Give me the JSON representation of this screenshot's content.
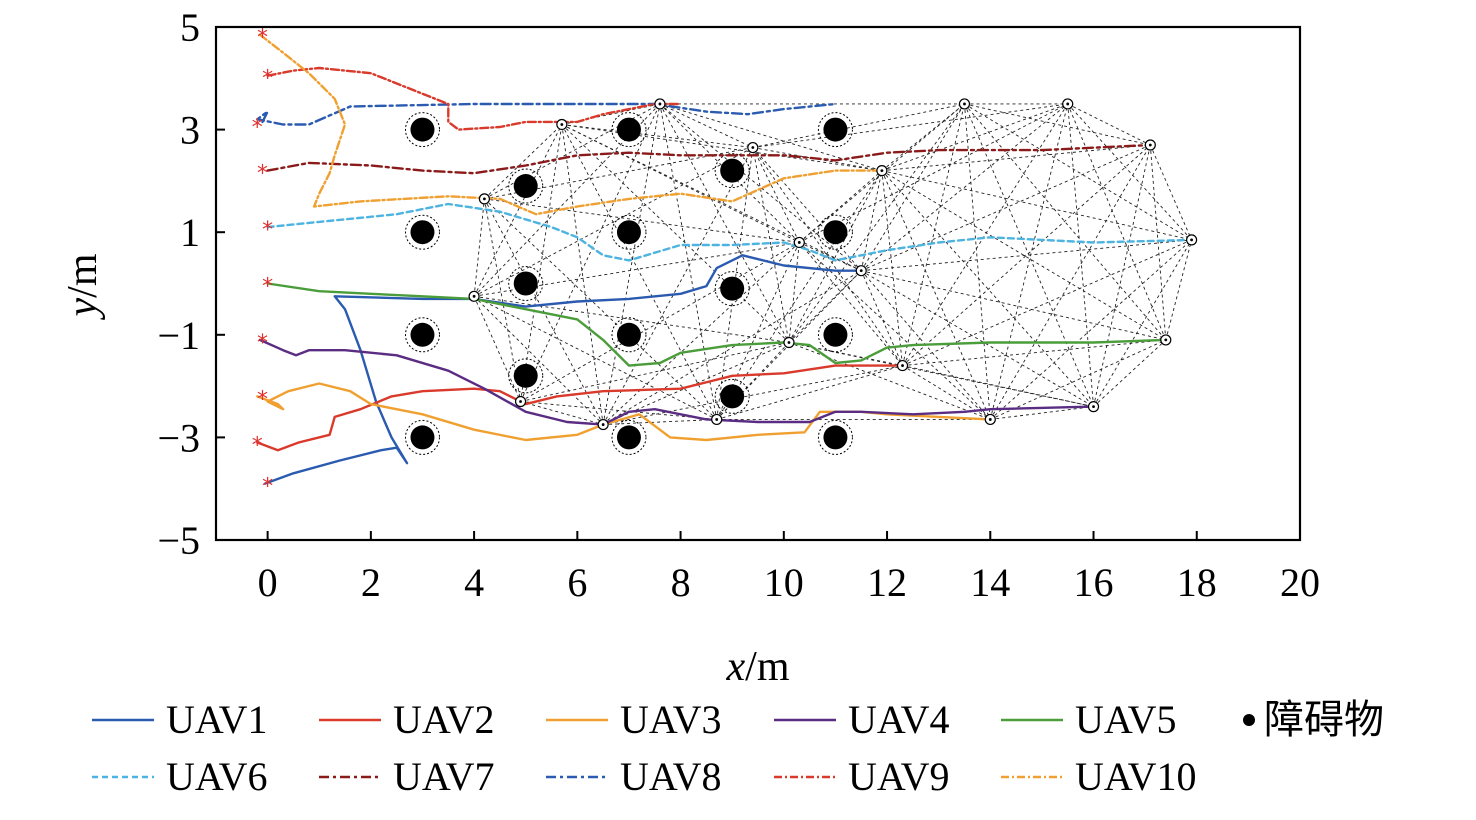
{
  "chart_data": {
    "type": "line",
    "xlabel": "x/m",
    "ylabel": "y/m",
    "xlim": [
      -1,
      20
    ],
    "ylim": [
      -5,
      5
    ],
    "xticks": [
      0,
      2,
      4,
      6,
      8,
      10,
      12,
      14,
      16,
      18,
      20
    ],
    "yticks": [
      -5,
      -3,
      -1,
      1,
      3,
      5
    ],
    "grid": false,
    "legend_position": "bottom",
    "obstacle_legend": "障碍物",
    "series": [
      {
        "name": "UAV1",
        "color": "#2b5bb0",
        "dash": "solid",
        "points": [
          [
            -0.05,
            -3.9
          ],
          [
            0.5,
            -3.7
          ],
          [
            1.4,
            -3.45
          ],
          [
            2.2,
            -3.25
          ],
          [
            2.5,
            -3.2
          ],
          [
            2.7,
            -3.5
          ],
          [
            2.4,
            -3.0
          ],
          [
            2.1,
            -2.3
          ],
          [
            1.8,
            -1.3
          ],
          [
            1.5,
            -0.5
          ],
          [
            1.3,
            -0.25
          ],
          [
            3.0,
            -0.3
          ],
          [
            4.0,
            -0.3
          ],
          [
            5.0,
            -0.45
          ],
          [
            6.0,
            -0.35
          ],
          [
            7.0,
            -0.3
          ],
          [
            8.0,
            -0.2
          ],
          [
            8.5,
            -0.05
          ],
          [
            8.7,
            0.3
          ],
          [
            9.2,
            0.55
          ],
          [
            10.0,
            0.35
          ],
          [
            11.0,
            0.25
          ],
          [
            11.5,
            0.25
          ]
        ]
      },
      {
        "name": "UAV2",
        "color": "#d93a2b",
        "dash": "solid",
        "points": [
          [
            -0.2,
            -3.1
          ],
          [
            0.2,
            -3.25
          ],
          [
            0.6,
            -3.1
          ],
          [
            1.2,
            -2.95
          ],
          [
            1.3,
            -2.6
          ],
          [
            1.8,
            -2.45
          ],
          [
            2.4,
            -2.2
          ],
          [
            3.0,
            -2.1
          ],
          [
            4.0,
            -2.05
          ],
          [
            4.5,
            -2.1
          ],
          [
            5.0,
            -2.35
          ],
          [
            5.6,
            -2.2
          ],
          [
            6.5,
            -2.1
          ],
          [
            8.0,
            -2.05
          ],
          [
            8.6,
            -1.9
          ],
          [
            9.0,
            -1.8
          ],
          [
            10.0,
            -1.75
          ],
          [
            11.0,
            -1.6
          ],
          [
            12.3,
            -1.6
          ]
        ]
      },
      {
        "name": "UAV3",
        "color": "#f0a030",
        "dash": "solid",
        "points": [
          [
            -0.2,
            -2.2
          ],
          [
            0.2,
            -2.35
          ],
          [
            0.3,
            -2.45
          ],
          [
            0.0,
            -2.3
          ],
          [
            0.4,
            -2.1
          ],
          [
            1.0,
            -1.95
          ],
          [
            1.6,
            -2.1
          ],
          [
            2.0,
            -2.35
          ],
          [
            3.0,
            -2.55
          ],
          [
            4.0,
            -2.85
          ],
          [
            5.0,
            -3.05
          ],
          [
            6.0,
            -2.95
          ],
          [
            6.5,
            -2.75
          ],
          [
            7.2,
            -2.55
          ],
          [
            7.8,
            -3.0
          ],
          [
            8.5,
            -3.05
          ],
          [
            9.5,
            -2.95
          ],
          [
            10.4,
            -2.9
          ],
          [
            10.7,
            -2.5
          ],
          [
            11.5,
            -2.5
          ],
          [
            12.0,
            -2.55
          ],
          [
            13.0,
            -2.6
          ],
          [
            14.0,
            -2.65
          ]
        ]
      },
      {
        "name": "UAV4",
        "color": "#5a2c82",
        "dash": "solid",
        "points": [
          [
            -0.15,
            -1.1
          ],
          [
            0.3,
            -1.3
          ],
          [
            0.55,
            -1.4
          ],
          [
            0.8,
            -1.3
          ],
          [
            1.5,
            -1.3
          ],
          [
            2.5,
            -1.4
          ],
          [
            3.5,
            -1.7
          ],
          [
            4.2,
            -2.05
          ],
          [
            5.0,
            -2.5
          ],
          [
            5.8,
            -2.7
          ],
          [
            6.5,
            -2.75
          ],
          [
            7.0,
            -2.5
          ],
          [
            7.5,
            -2.45
          ],
          [
            8.5,
            -2.65
          ],
          [
            9.5,
            -2.7
          ],
          [
            10.5,
            -2.7
          ],
          [
            11.0,
            -2.5
          ],
          [
            11.5,
            -2.5
          ],
          [
            12.5,
            -2.55
          ],
          [
            13.5,
            -2.5
          ],
          [
            14.0,
            -2.45
          ],
          [
            16.0,
            -2.4
          ]
        ]
      },
      {
        "name": "UAV5",
        "color": "#4a9d3a",
        "dash": "solid",
        "points": [
          [
            0.0,
            0.0
          ],
          [
            1.0,
            -0.15
          ],
          [
            2.0,
            -0.2
          ],
          [
            3.0,
            -0.25
          ],
          [
            4.0,
            -0.3
          ],
          [
            5.0,
            -0.5
          ],
          [
            6.0,
            -0.7
          ],
          [
            6.5,
            -1.1
          ],
          [
            7.0,
            -1.6
          ],
          [
            7.6,
            -1.55
          ],
          [
            8.0,
            -1.35
          ],
          [
            9.0,
            -1.2
          ],
          [
            10.0,
            -1.15
          ],
          [
            10.5,
            -1.2
          ],
          [
            11.0,
            -1.55
          ],
          [
            11.5,
            -1.5
          ],
          [
            12.0,
            -1.25
          ],
          [
            12.5,
            -1.2
          ],
          [
            14.0,
            -1.15
          ],
          [
            16.0,
            -1.15
          ],
          [
            17.4,
            -1.1
          ]
        ]
      },
      {
        "name": "UAV6",
        "color": "#4db3e0",
        "dash": "6,4",
        "points": [
          [
            0.0,
            1.1
          ],
          [
            1.0,
            1.2
          ],
          [
            2.5,
            1.35
          ],
          [
            3.5,
            1.55
          ],
          [
            4.5,
            1.4
          ],
          [
            5.5,
            1.1
          ],
          [
            6.0,
            0.9
          ],
          [
            6.5,
            0.55
          ],
          [
            7.0,
            0.45
          ],
          [
            8.0,
            0.75
          ],
          [
            9.0,
            0.75
          ],
          [
            10.0,
            0.8
          ],
          [
            10.5,
            0.65
          ],
          [
            11.0,
            0.45
          ],
          [
            12.0,
            0.65
          ],
          [
            13.0,
            0.8
          ],
          [
            14.0,
            0.9
          ],
          [
            15.0,
            0.85
          ],
          [
            16.0,
            0.8
          ],
          [
            17.9,
            0.85
          ]
        ]
      },
      {
        "name": "UAV7",
        "color": "#8b1a1a",
        "dash": "10,4,3,4",
        "points": [
          [
            0.0,
            2.2
          ],
          [
            0.8,
            2.35
          ],
          [
            2.0,
            2.3
          ],
          [
            3.0,
            2.2
          ],
          [
            4.0,
            2.15
          ],
          [
            5.0,
            2.3
          ],
          [
            6.0,
            2.5
          ],
          [
            7.0,
            2.55
          ],
          [
            8.0,
            2.5
          ],
          [
            9.0,
            2.5
          ],
          [
            10.0,
            2.5
          ],
          [
            11.0,
            2.4
          ],
          [
            12.0,
            2.55
          ],
          [
            13.0,
            2.6
          ],
          [
            15.0,
            2.6
          ],
          [
            17.1,
            2.7
          ]
        ]
      },
      {
        "name": "UAV8",
        "color": "#2b5bb0",
        "dash": "10,4,3,4",
        "points": [
          [
            -0.1,
            3.15
          ],
          [
            0.0,
            3.35
          ],
          [
            -0.2,
            3.2
          ],
          [
            0.3,
            3.1
          ],
          [
            0.8,
            3.1
          ],
          [
            1.6,
            3.45
          ],
          [
            4.0,
            3.5
          ],
          [
            6.0,
            3.5
          ],
          [
            7.5,
            3.5
          ],
          [
            8.5,
            3.35
          ],
          [
            9.3,
            3.3
          ],
          [
            10.0,
            3.4
          ],
          [
            11.0,
            3.5
          ]
        ]
      },
      {
        "name": "UAV9",
        "color": "#d93a2b",
        "dash": "8,3,2,3",
        "points": [
          [
            0.0,
            4.05
          ],
          [
            0.5,
            4.15
          ],
          [
            1.0,
            4.2
          ],
          [
            2.0,
            4.1
          ],
          [
            3.5,
            3.5
          ],
          [
            3.5,
            3.15
          ],
          [
            3.7,
            3.0
          ],
          [
            4.5,
            3.05
          ],
          [
            5.0,
            3.15
          ],
          [
            6.0,
            3.15
          ],
          [
            6.5,
            3.3
          ],
          [
            7.0,
            3.4
          ],
          [
            7.5,
            3.5
          ],
          [
            8.0,
            3.5
          ]
        ]
      },
      {
        "name": "UAV10",
        "color": "#f0a030",
        "dash": "8,3,2,3",
        "points": [
          [
            -0.15,
            4.85
          ],
          [
            0.3,
            4.5
          ],
          [
            0.8,
            4.1
          ],
          [
            1.3,
            3.6
          ],
          [
            1.5,
            3.1
          ],
          [
            1.3,
            2.5
          ],
          [
            1.2,
            2.15
          ],
          [
            1.0,
            1.75
          ],
          [
            0.9,
            1.5
          ],
          [
            1.8,
            1.6
          ],
          [
            3.5,
            1.7
          ],
          [
            4.5,
            1.65
          ],
          [
            5.2,
            1.35
          ],
          [
            6.0,
            1.5
          ],
          [
            7.0,
            1.65
          ],
          [
            8.0,
            1.75
          ],
          [
            9.0,
            1.6
          ],
          [
            10.0,
            2.05
          ],
          [
            11.0,
            2.2
          ],
          [
            11.9,
            2.2
          ]
        ]
      }
    ],
    "start_markers": [
      [
        -0.1,
        4.85
      ],
      [
        0.0,
        4.05
      ],
      [
        -0.2,
        3.1
      ],
      [
        -0.1,
        2.2
      ],
      [
        0.0,
        1.1
      ],
      [
        0.0,
        0.0
      ],
      [
        -0.1,
        -1.1
      ],
      [
        -0.1,
        -2.2
      ],
      [
        -0.2,
        -3.1
      ],
      [
        0.0,
        -3.9
      ]
    ],
    "obstacles": [
      [
        3,
        3
      ],
      [
        7,
        3
      ],
      [
        11,
        3
      ],
      [
        5,
        1.9
      ],
      [
        9,
        2.2
      ],
      [
        3,
        1
      ],
      [
        7,
        1
      ],
      [
        11,
        1
      ],
      [
        5,
        0
      ],
      [
        9,
        -0.1
      ],
      [
        3,
        -1
      ],
      [
        7,
        -1
      ],
      [
        11,
        -1
      ],
      [
        5,
        -1.8
      ],
      [
        9,
        -2.2
      ],
      [
        3,
        -3
      ],
      [
        7,
        -3
      ],
      [
        11,
        -3
      ]
    ],
    "formation_nodes": [
      [
        4.0,
        -0.25
      ],
      [
        4.2,
        1.65
      ],
      [
        4.9,
        -2.3
      ],
      [
        5.7,
        3.1
      ],
      [
        6.5,
        -2.75
      ],
      [
        7.6,
        3.5
      ],
      [
        8.7,
        -2.65
      ],
      [
        9.4,
        2.65
      ],
      [
        10.1,
        -1.15
      ],
      [
        10.3,
        0.8
      ],
      [
        11.5,
        0.25
      ],
      [
        11.9,
        2.2
      ],
      [
        12.3,
        -1.6
      ],
      [
        13.5,
        3.5
      ],
      [
        14.0,
        -2.65
      ],
      [
        15.5,
        3.5
      ],
      [
        16.0,
        -2.4
      ],
      [
        17.1,
        2.7
      ],
      [
        17.4,
        -1.1
      ],
      [
        17.9,
        0.85
      ]
    ]
  }
}
